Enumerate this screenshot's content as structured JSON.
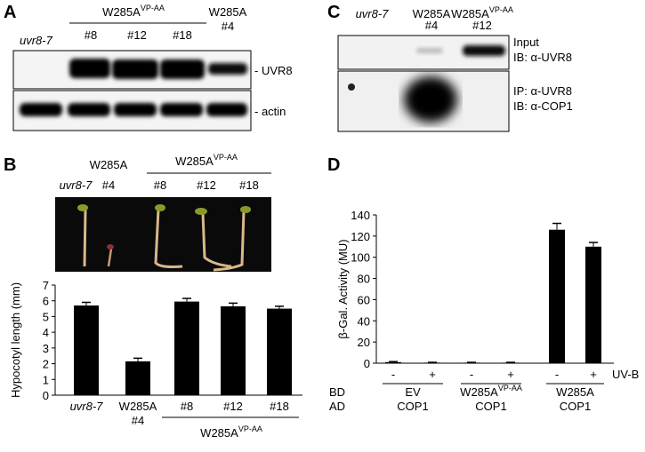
{
  "panel_A": {
    "label": "A",
    "strain": "uvr8-7",
    "group": "W285A",
    "group_sup": "VP-AA",
    "lanes": [
      "#8",
      "#12",
      "#18"
    ],
    "single": "W285A",
    "single_lane": "#4",
    "bands": [
      "- UVR8",
      "- actin"
    ]
  },
  "panel_B": {
    "label": "B",
    "single": "W285A",
    "single_lane": "#4",
    "group": "W285A",
    "group_sup": "VP-AA",
    "strain": "uvr8-7",
    "lanes": [
      "#8",
      "#12",
      "#18"
    ]
  },
  "panel_C": {
    "label": "C",
    "strain": "uvr8-7",
    "lane2": "W285A",
    "lane2_line": "#4",
    "lane3": "W285A",
    "lane3_sup": "VP-AA",
    "lane3_line": "#12",
    "blots": [
      [
        "Input",
        "IB: α-UVR8"
      ],
      [
        "IP: α-UVR8",
        "IB: α-COP1"
      ]
    ]
  },
  "panel_D": {
    "label": "D"
  },
  "chart_data": [
    {
      "type": "bar",
      "y_label": "Hypocotyl length (mm)",
      "categories": [
        [
          "uvr8-7"
        ],
        [
          "W285A",
          "#4"
        ],
        [
          "#8"
        ],
        [
          "#12"
        ],
        [
          "#18"
        ]
      ],
      "values": [
        5.7,
        2.15,
        5.95,
        5.65,
        5.5
      ],
      "errors": [
        0.2,
        0.2,
        0.2,
        0.2,
        0.15
      ],
      "color": "#000000",
      "ylim": [
        0,
        7
      ],
      "yticks": [
        0,
        1,
        2,
        3,
        4,
        5,
        6,
        7
      ],
      "group_label": "W285A",
      "group_sup": "VP-AA"
    },
    {
      "type": "bar",
      "y_label": "β-Gal. Activity (MU)",
      "categories": [
        "-",
        "+",
        "-",
        "+",
        "-",
        "+"
      ],
      "values": [
        1,
        0.5,
        0.5,
        0.5,
        126,
        110
      ],
      "errors": [
        0.5,
        0.3,
        0.3,
        0.3,
        6,
        4
      ],
      "color": "#000000",
      "ylim": [
        0,
        140
      ],
      "yticks": [
        0,
        20,
        40,
        60,
        80,
        100,
        120,
        140
      ],
      "treatment_label": "UV-B",
      "row_labels": [
        "BD",
        "AD"
      ],
      "groups": [
        {
          "bd": "EV",
          "ad": "COP1"
        },
        {
          "bd": "W285A",
          "sup": "VP-AA",
          "ad": "COP1"
        },
        {
          "bd": "W285A",
          "ad": "COP1"
        }
      ]
    }
  ]
}
